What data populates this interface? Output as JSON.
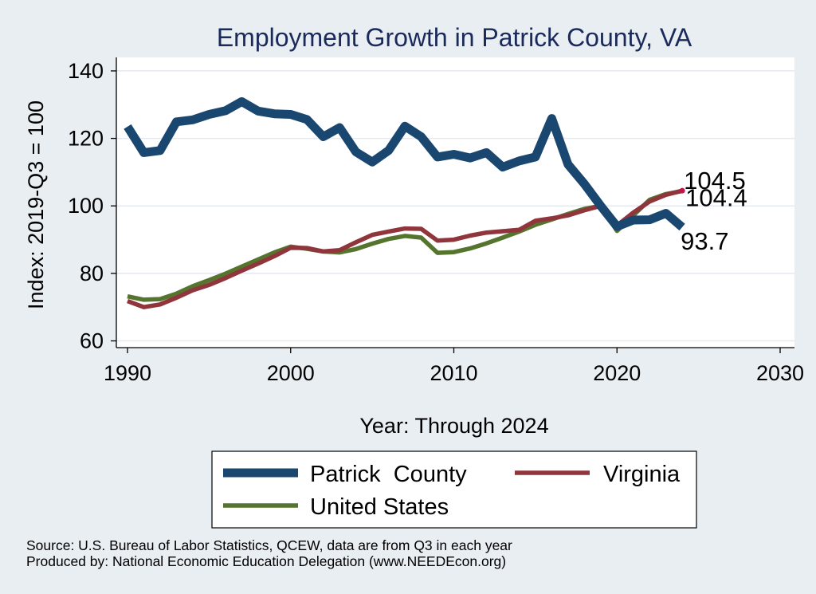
{
  "chart_data": {
    "type": "line",
    "title": "Employment Growth in Patrick County, VA",
    "xlabel": "Year: Through 2024",
    "ylabel": "Index: 2019-Q3 = 100",
    "xlim": [
      1990,
      2030
    ],
    "ylim": [
      58,
      144
    ],
    "xticks": [
      "1990",
      "2000",
      "2010",
      "2020",
      "2030"
    ],
    "yticks": [
      "60",
      "80",
      "100",
      "120",
      "140"
    ],
    "grid": true,
    "legend_position": "bottom",
    "x": [
      1990,
      1991,
      1992,
      1993,
      1994,
      1995,
      1996,
      1997,
      1998,
      1999,
      2000,
      2001,
      2002,
      2003,
      2004,
      2005,
      2006,
      2007,
      2008,
      2009,
      2010,
      2011,
      2012,
      2013,
      2014,
      2015,
      2016,
      2017,
      2018,
      2019,
      2020,
      2021,
      2022,
      2023,
      2024
    ],
    "series": [
      {
        "name": "Patrick  County",
        "color": "#1a476f",
        "values": [
          123.5,
          115.8,
          116.4,
          124.9,
          125.5,
          127.1,
          128.2,
          130.9,
          128.1,
          127.3,
          127.1,
          125.6,
          120.5,
          123.2,
          116.0,
          113.0,
          116.4,
          123.6,
          120.5,
          114.5,
          115.3,
          114.2,
          115.8,
          111.5,
          113.3,
          114.5,
          125.9,
          112.3,
          106.5,
          100.0,
          93.9,
          95.8,
          95.9,
          97.8,
          93.7
        ],
        "end_label": "93.7"
      },
      {
        "name": "Virginia",
        "color": "#90353b",
        "values": [
          71.8,
          70.0,
          70.8,
          72.8,
          75.0,
          76.6,
          78.6,
          80.8,
          82.9,
          85.1,
          87.6,
          87.5,
          86.5,
          86.9,
          89.2,
          91.4,
          92.4,
          93.3,
          93.2,
          89.7,
          90.0,
          91.2,
          92.1,
          92.5,
          92.9,
          95.6,
          96.3,
          97.2,
          98.7,
          100.0,
          94.2,
          98.0,
          101.3,
          103.3,
          104.5
        ],
        "end_label": "104.5"
      },
      {
        "name": "United States",
        "color": "#55752f",
        "values": [
          73.2,
          72.2,
          72.4,
          74.0,
          76.2,
          78.0,
          79.9,
          82.0,
          84.1,
          86.2,
          87.9,
          87.3,
          86.5,
          86.2,
          87.2,
          88.8,
          90.2,
          91.1,
          90.6,
          86.1,
          86.3,
          87.4,
          88.9,
          90.6,
          92.4,
          94.4,
          96.0,
          97.6,
          99.1,
          100.0,
          92.6,
          97.2,
          101.8,
          103.5,
          104.4
        ],
        "end_label": "104.4"
      }
    ]
  },
  "source_note": "Source: U.S. Bureau of Labor Statistics, QCEW, data are from Q3 in each year",
  "producer_note": "Produced by: National Economic Education Delegation (www.NEEDEcon.org)"
}
